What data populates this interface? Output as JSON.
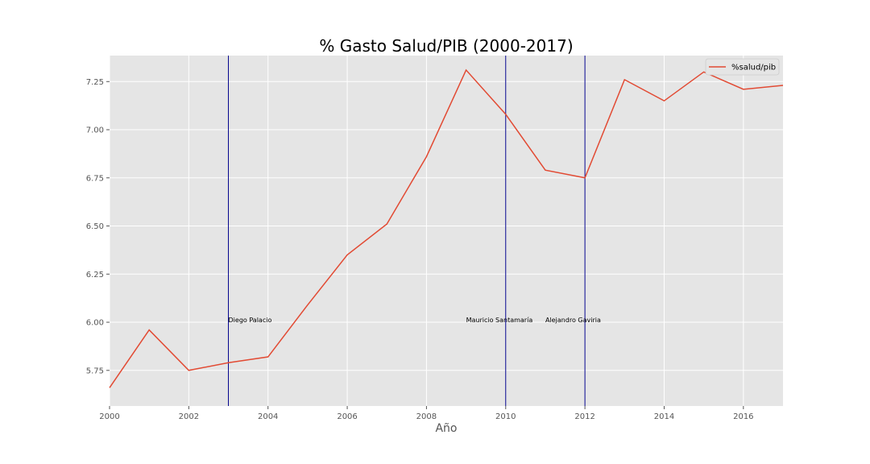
{
  "chart_data": {
    "type": "line",
    "title": "% Gasto Salud/PIB (2000-2017)",
    "xlabel": "Año",
    "ylabel": "",
    "xlim": [
      2000,
      2017
    ],
    "ylim": [
      5.565,
      7.385
    ],
    "x_ticks": [
      2000,
      2002,
      2004,
      2006,
      2008,
      2010,
      2012,
      2014,
      2016
    ],
    "y_ticks": [
      5.75,
      6.0,
      6.25,
      6.5,
      6.75,
      7.0,
      7.25
    ],
    "x_tick_labels": [
      "2000",
      "2002",
      "2004",
      "2006",
      "2008",
      "2010",
      "2012",
      "2014",
      "2016"
    ],
    "y_tick_labels": [
      "5.75",
      "6.00",
      "6.25",
      "6.50",
      "6.75",
      "7.00",
      "7.25"
    ],
    "grid": true,
    "legend_position": "top-right",
    "series": [
      {
        "name": "%salud/pib",
        "color": "#E24A33",
        "x": [
          2000,
          2001,
          2002,
          2003,
          2004,
          2005,
          2006,
          2007,
          2008,
          2009,
          2010,
          2011,
          2012,
          2013,
          2014,
          2015,
          2016,
          2017
        ],
        "values": [
          5.66,
          5.96,
          5.75,
          5.79,
          5.82,
          6.09,
          6.35,
          6.51,
          6.86,
          7.31,
          7.08,
          6.79,
          6.75,
          7.26,
          7.15,
          7.3,
          7.21,
          7.23
        ]
      }
    ],
    "vlines": [
      {
        "x": 2003,
        "color": "#00008B",
        "label": "Diego Palacio",
        "label_x": 2003,
        "label_y": 6.0
      },
      {
        "x": 2010,
        "color": "#00008B",
        "label": "Mauricio Santamaría",
        "label_x": 2009,
        "label_y": 6.0
      },
      {
        "x": 2012,
        "color": "#00008B",
        "label": "Alejandro Gaviria",
        "label_x": 2011,
        "label_y": 6.0
      }
    ],
    "colors": {
      "plot_background": "#E5E5E5",
      "grid": "#FFFFFF",
      "text": "#555555"
    }
  }
}
